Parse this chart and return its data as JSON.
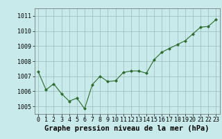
{
  "x": [
    0,
    1,
    2,
    3,
    4,
    5,
    6,
    7,
    8,
    9,
    10,
    11,
    12,
    13,
    14,
    15,
    16,
    17,
    18,
    19,
    20,
    21,
    22,
    23
  ],
  "y": [
    1007.3,
    1006.1,
    1006.5,
    1005.85,
    1005.35,
    1005.55,
    1004.85,
    1006.45,
    1007.0,
    1006.65,
    1006.7,
    1007.25,
    1007.35,
    1007.35,
    1007.2,
    1008.1,
    1008.6,
    1008.85,
    1009.1,
    1009.35,
    1009.8,
    1010.25,
    1010.3,
    1010.75
  ],
  "ylim": [
    1004.5,
    1011.5
  ],
  "yticks": [
    1005,
    1006,
    1007,
    1008,
    1009,
    1010,
    1011
  ],
  "xticks": [
    0,
    1,
    2,
    3,
    4,
    5,
    6,
    7,
    8,
    9,
    10,
    11,
    12,
    13,
    14,
    15,
    16,
    17,
    18,
    19,
    20,
    21,
    22,
    23
  ],
  "line_color": "#2d6a2d",
  "marker_color": "#2d6a2d",
  "bg_color": "#c8eaea",
  "grid_color": "#99bbbb",
  "xlabel": "Graphe pression niveau de la mer (hPa)",
  "xlabel_fontsize": 7.5,
  "tick_fontsize": 6,
  "fig_bg": "#c8eaea"
}
